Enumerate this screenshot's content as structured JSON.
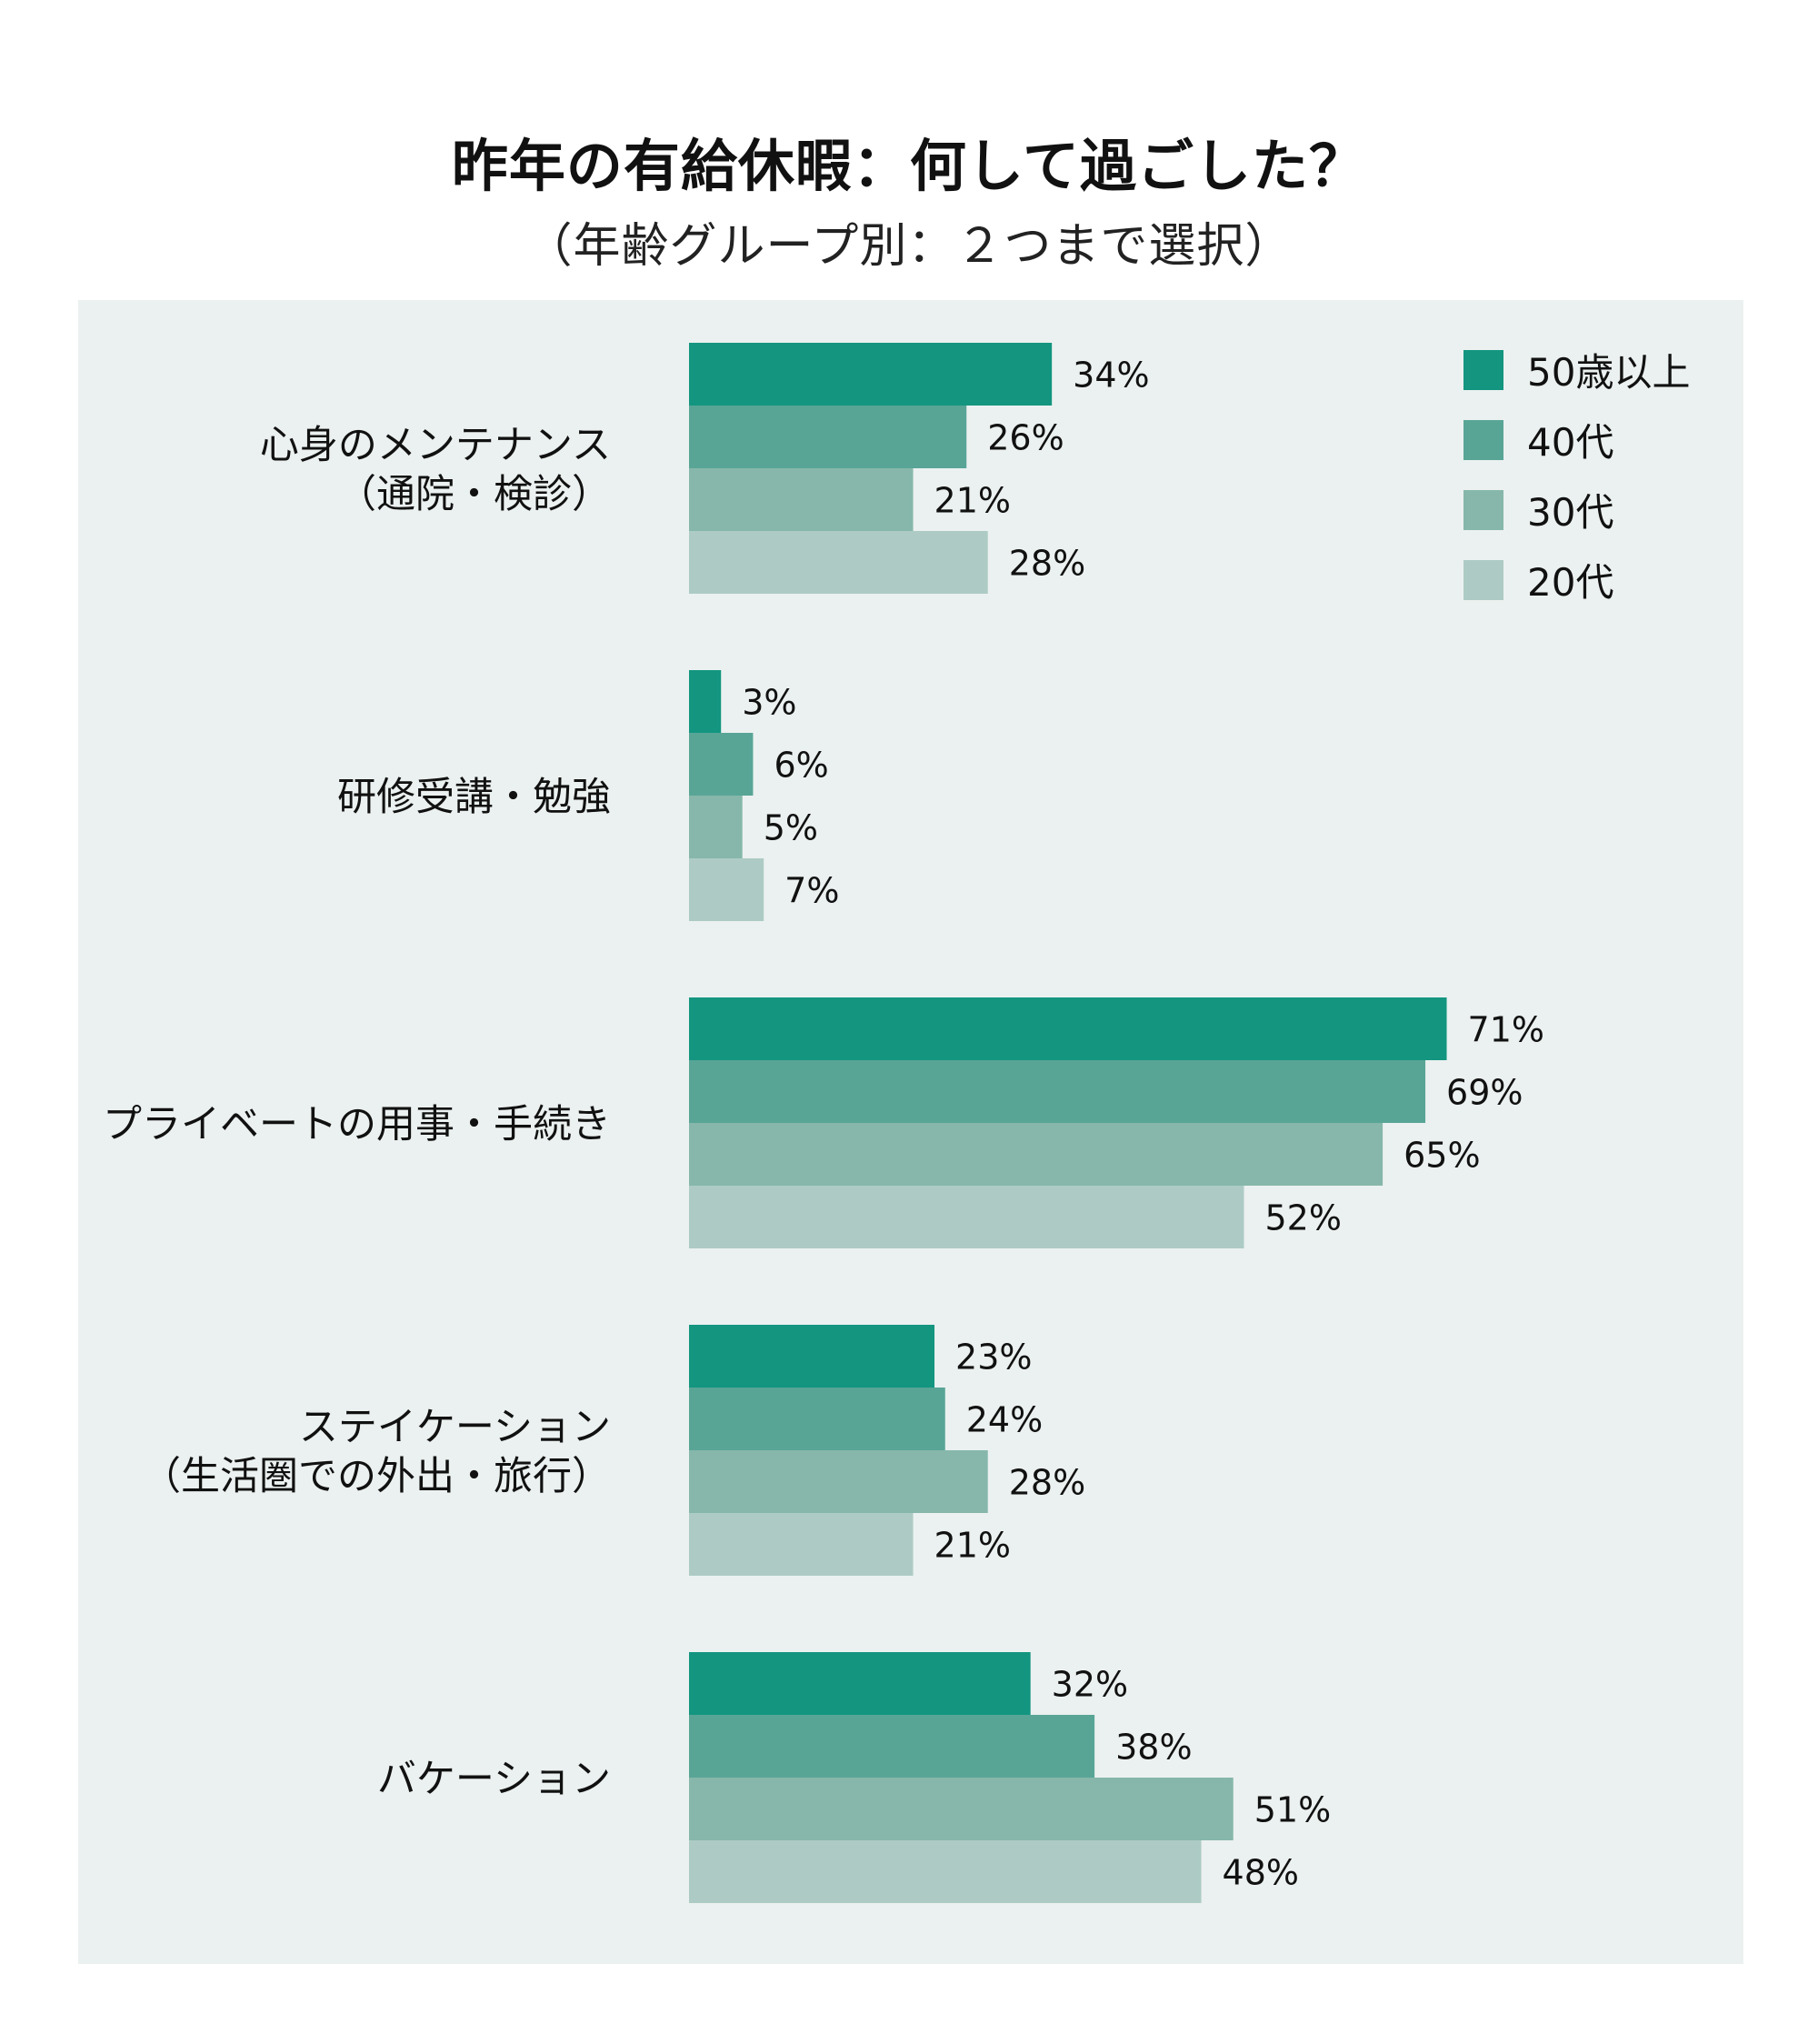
{
  "title": "昨年の有給休暇：何して過ごした？",
  "subtitle": "（年齢グループ別：２つまで選択）",
  "chart_data": {
    "type": "bar",
    "orientation": "horizontal",
    "title": "昨年の有給休暇：何して過ごした？",
    "subtitle": "（年齢グループ別：２つまで選択）",
    "unit": "%",
    "categories": [
      [
        "心身のメンテナンス",
        "（通院・検診）"
      ],
      [
        "研修受講・勉強"
      ],
      [
        "プライベートの用事・手続き"
      ],
      [
        "ステイケーション",
        "（生活圏での外出・旅行）"
      ],
      [
        "バケーション"
      ]
    ],
    "series": [
      {
        "name": "50歳以上",
        "color": "#139580",
        "values": [
          34,
          3,
          71,
          23,
          32
        ]
      },
      {
        "name": "40代",
        "color": "#58a596",
        "values": [
          26,
          6,
          69,
          24,
          38
        ]
      },
      {
        "name": "30代",
        "color": "#86b7aa",
        "values": [
          21,
          5,
          65,
          28,
          51
        ]
      },
      {
        "name": "20代",
        "color": "#adcbc4",
        "values": [
          28,
          7,
          52,
          21,
          48
        ]
      }
    ],
    "xlim": [
      0,
      100
    ],
    "grid": false,
    "legend_position": "top-right"
  }
}
